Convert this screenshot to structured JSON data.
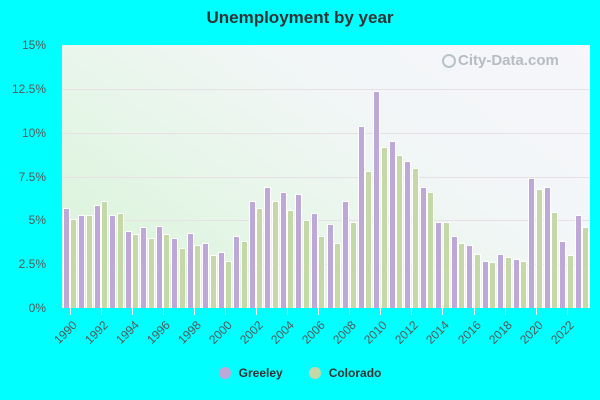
{
  "title": "Unemployment by year",
  "watermark": "City-Data.com",
  "legend": [
    {
      "label": "Greeley",
      "color": "#bea8d8"
    },
    {
      "label": "Colorado",
      "color": "#c5d8a8"
    }
  ],
  "y_ticks": [
    "15%",
    "12.5%",
    "10%",
    "7.5%",
    "5%",
    "2.5%",
    "0%"
  ],
  "x_ticks": [
    "1990",
    "1992",
    "1994",
    "1996",
    "1998",
    "2000",
    "2002",
    "2004",
    "2006",
    "2008",
    "2010",
    "2012",
    "2014",
    "2016",
    "2018",
    "2020",
    "2022"
  ],
  "chart_data": {
    "type": "bar",
    "title": "Unemployment by year",
    "xlabel": "",
    "ylabel": "",
    "ylim": [
      0,
      15
    ],
    "grid": true,
    "legend_position": "bottom",
    "categories": [
      "1990",
      "1991",
      "1992",
      "1993",
      "1994",
      "1995",
      "1996",
      "1997",
      "1998",
      "1999",
      "2000",
      "2001",
      "2002",
      "2003",
      "2004",
      "2005",
      "2006",
      "2007",
      "2008",
      "2009",
      "2010",
      "2011",
      "2012",
      "2013",
      "2014",
      "2015",
      "2016",
      "2017",
      "2018",
      "2019",
      "2020",
      "2021",
      "2022",
      "2023"
    ],
    "series": [
      {
        "name": "Greeley",
        "values": [
          5.7,
          5.3,
          5.9,
          5.3,
          4.4,
          4.6,
          4.7,
          4.0,
          4.3,
          3.7,
          3.2,
          4.1,
          6.1,
          6.9,
          6.6,
          6.5,
          5.4,
          4.8,
          6.1,
          10.4,
          12.4,
          9.5,
          8.4,
          6.9,
          4.9,
          4.1,
          3.6,
          2.7,
          3.1,
          2.8,
          7.4,
          6.9,
          3.8,
          5.3
        ]
      },
      {
        "name": "Colorado",
        "values": [
          5.1,
          5.3,
          6.1,
          5.4,
          4.2,
          4.0,
          4.2,
          3.4,
          3.6,
          3.0,
          2.7,
          3.8,
          5.7,
          6.1,
          5.6,
          5.0,
          4.1,
          3.7,
          4.9,
          7.8,
          9.2,
          8.7,
          8.0,
          6.6,
          4.9,
          3.7,
          3.1,
          2.6,
          2.9,
          2.7,
          6.8,
          5.5,
          3.0,
          4.6
        ]
      }
    ]
  }
}
